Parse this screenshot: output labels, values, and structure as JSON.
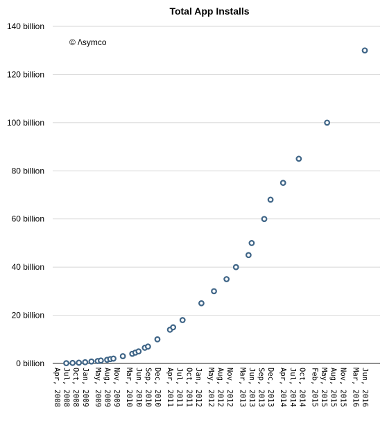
{
  "chart_data": {
    "type": "scatter",
    "title": "Total App Installs",
    "annotation": "© /\\symco",
    "xlabel": "",
    "ylabel": "",
    "ylim": [
      0,
      140
    ],
    "grid": true,
    "legend": "none",
    "y_ticks": [
      {
        "value": 0,
        "label": "0 billion"
      },
      {
        "value": 20,
        "label": "20 billion"
      },
      {
        "value": 40,
        "label": "40 billion"
      },
      {
        "value": 60,
        "label": "60 billion"
      },
      {
        "value": 80,
        "label": "80 billion"
      },
      {
        "value": 100,
        "label": "100 billion"
      },
      {
        "value": 120,
        "label": "120 billion"
      },
      {
        "value": 140,
        "label": "140 billion"
      }
    ],
    "x_ticks": [
      "Apr, 2008",
      "Jul, 2008",
      "Oct, 2008",
      "Jan, 2009",
      "May, 2009",
      "Aug, 2009",
      "Nov, 2009",
      "Mar, 2010",
      "Jun, 2010",
      "Sep, 2010",
      "Dec, 2010",
      "Apr, 2011",
      "Jul, 2011",
      "Oct, 2011",
      "Jan, 2012",
      "May, 2012",
      "Aug, 2012",
      "Nov, 2012",
      "Mar, 2013",
      "Jun, 2013",
      "Sep, 2013",
      "Dec, 2013",
      "Apr, 2014",
      "Jul, 2014",
      "Oct, 2014",
      "Feb, 2015",
      "May, 2015",
      "Aug, 2015",
      "Nov, 2015",
      "Mar, 2016",
      "Jun, 2016"
    ],
    "points": [
      {
        "x": "2008-07",
        "y": 0.1
      },
      {
        "x": "2008-09",
        "y": 0.2
      },
      {
        "x": "2008-11",
        "y": 0.3
      },
      {
        "x": "2009-01",
        "y": 0.5
      },
      {
        "x": "2009-03",
        "y": 0.8
      },
      {
        "x": "2009-05",
        "y": 1.0
      },
      {
        "x": "2009-06",
        "y": 1.2
      },
      {
        "x": "2009-08",
        "y": 1.5
      },
      {
        "x": "2009-09",
        "y": 1.8
      },
      {
        "x": "2009-10",
        "y": 2.0
      },
      {
        "x": "2010-01",
        "y": 3.0
      },
      {
        "x": "2010-04",
        "y": 4.0
      },
      {
        "x": "2010-05",
        "y": 4.5
      },
      {
        "x": "2010-06",
        "y": 5.0
      },
      {
        "x": "2010-08",
        "y": 6.5
      },
      {
        "x": "2010-09",
        "y": 7.0
      },
      {
        "x": "2010-12",
        "y": 10.0
      },
      {
        "x": "2011-04",
        "y": 14.0
      },
      {
        "x": "2011-05",
        "y": 15.0
      },
      {
        "x": "2011-08",
        "y": 18.0
      },
      {
        "x": "2012-02",
        "y": 25.0
      },
      {
        "x": "2012-06",
        "y": 30.0
      },
      {
        "x": "2012-10",
        "y": 35.0
      },
      {
        "x": "2013-01",
        "y": 40.0
      },
      {
        "x": "2013-05",
        "y": 45.0
      },
      {
        "x": "2013-06",
        "y": 50.0
      },
      {
        "x": "2013-10",
        "y": 60.0
      },
      {
        "x": "2013-12",
        "y": 68.0
      },
      {
        "x": "2014-04",
        "y": 75.0
      },
      {
        "x": "2014-09",
        "y": 85.0
      },
      {
        "x": "2015-06",
        "y": 100.0
      },
      {
        "x": "2016-06",
        "y": 130.0
      }
    ]
  }
}
